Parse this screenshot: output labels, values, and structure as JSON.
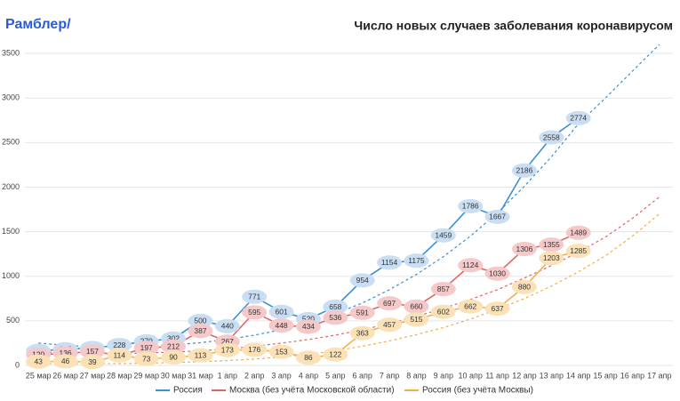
{
  "logo": "Рамблер/",
  "chart_data": {
    "type": "line",
    "title": "Число новых случаев заболевания коронавирусом",
    "categories": [
      "25 мар",
      "26 мар",
      "27 мар",
      "28 мар",
      "29 мар",
      "30 мар",
      "31 мар",
      "1 апр",
      "2 апр",
      "3 апр",
      "4 апр",
      "5 апр",
      "6 апр",
      "7 апр",
      "8 апр",
      "9 апр",
      "10 апр",
      "11 апр",
      "12 апр",
      "13 апр",
      "14 апр",
      "15 апр",
      "16 апр",
      "17 апр"
    ],
    "series": [
      {
        "name": "Россия",
        "color": "#3a8fd6",
        "label_fill": "#c9def3",
        "values": [
          163,
          182,
          196,
          228,
          270,
          302,
          500,
          440,
          771,
          601,
          520,
          658,
          954,
          1154,
          1175,
          1459,
          1786,
          1667,
          2186,
          2558,
          2774,
          null,
          null,
          null
        ]
      },
      {
        "name": "Москва (без учёта Московской области)",
        "color": "#e06666",
        "label_fill": "#f5c9c9",
        "values": [
          120,
          136,
          157,
          114,
          197,
          212,
          387,
          267,
          595,
          448,
          434,
          536,
          591,
          697,
          660,
          857,
          1124,
          1030,
          1306,
          1355,
          1489,
          null,
          null,
          null
        ]
      },
      {
        "name": "Россия (без учёта Москвы)",
        "color": "#f0b04c",
        "label_fill": "#fbe2b6",
        "values": [
          43,
          46,
          39,
          114,
          73,
          90,
          113,
          173,
          176,
          153,
          86,
          122,
          363,
          457,
          515,
          602,
          662,
          637,
          880,
          1203,
          1285,
          null,
          null,
          null
        ]
      }
    ],
    "trendlines": [
      {
        "color": "#3a8fd6",
        "values": [
          250,
          225,
          210,
          210,
          215,
          230,
          255,
          290,
          340,
          400,
          480,
          580,
          700,
          850,
          1020,
          1220,
          1450,
          1710,
          2010,
          2340,
          2710,
          3000,
          3300,
          3600
        ]
      },
      {
        "color": "#e06666",
        "values": [
          150,
          140,
          135,
          135,
          140,
          150,
          165,
          185,
          215,
          250,
          290,
          340,
          400,
          470,
          550,
          640,
          740,
          850,
          980,
          1120,
          1270,
          1440,
          1650,
          1890
        ]
      },
      {
        "color": "#f0b04c",
        "values": [
          20,
          18,
          18,
          20,
          25,
          32,
          42,
          55,
          72,
          95,
          125,
          165,
          215,
          275,
          345,
          425,
          520,
          630,
          750,
          890,
          1050,
          1230,
          1450,
          1700
        ]
      }
    ],
    "ylim": [
      0,
      3700
    ],
    "yticks": [
      0,
      500,
      1000,
      1500,
      2000,
      2500,
      3000,
      3500
    ],
    "grid": true,
    "legend": "bottom"
  }
}
